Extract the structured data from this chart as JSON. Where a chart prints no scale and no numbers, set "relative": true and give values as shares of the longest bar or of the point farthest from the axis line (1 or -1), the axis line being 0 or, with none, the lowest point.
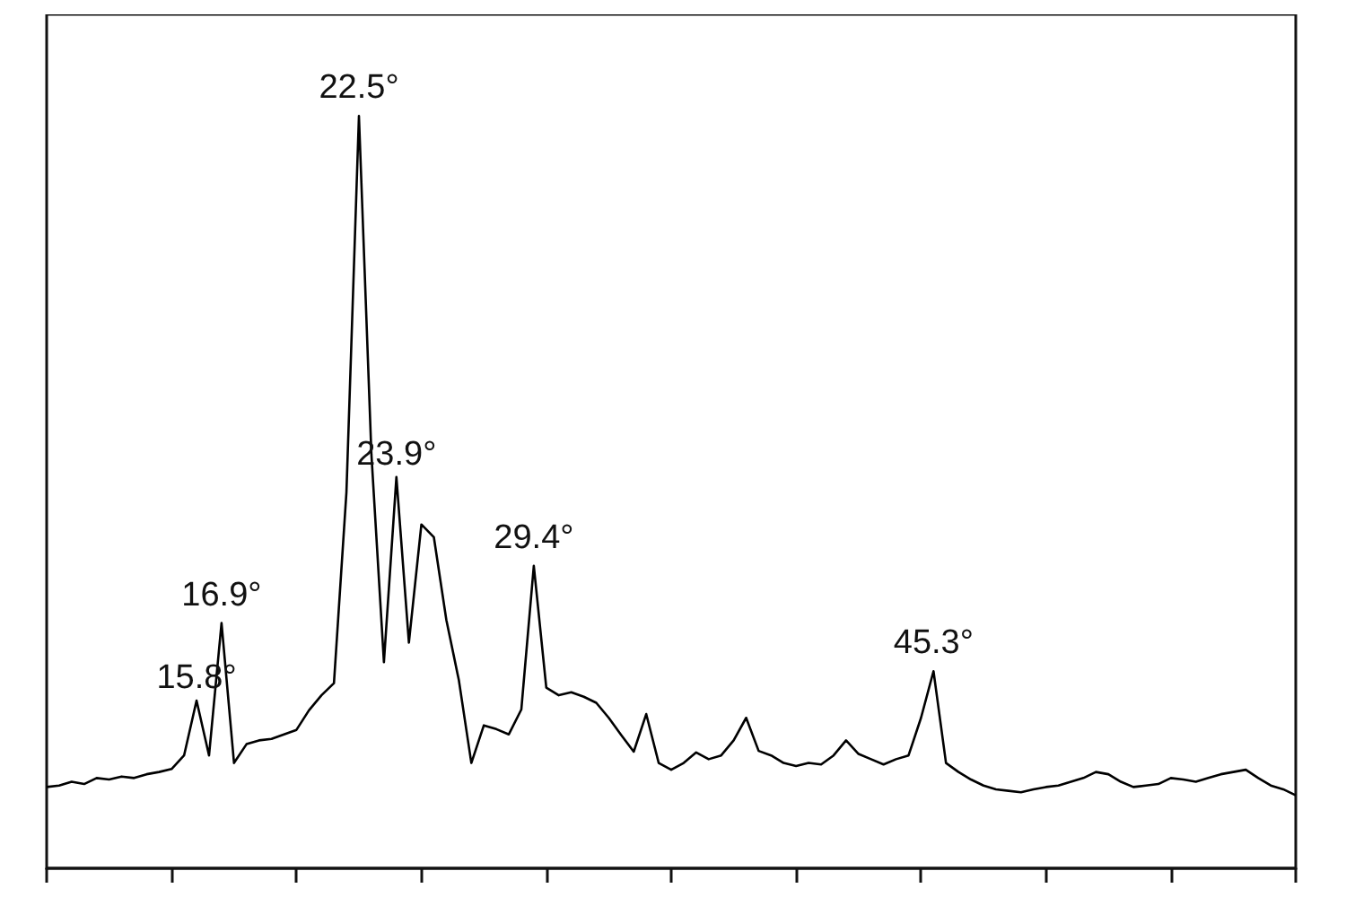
{
  "chart_data": {
    "type": "line",
    "relative": true,
    "color": "#000000",
    "marker": "none",
    "grid": false,
    "annotations": [
      {
        "text": "15.8°",
        "y": 0.223
      },
      {
        "text": "16.9°",
        "y": 0.326
      },
      {
        "text": "22.5°",
        "y": 1.0
      },
      {
        "text": "23.9°",
        "y": 0.52
      },
      {
        "text": "29.4°",
        "y": 0.402
      },
      {
        "text": "45.3°",
        "y": 0.262
      }
    ],
    "categories": [
      null,
      null,
      null,
      null,
      null,
      null,
      null,
      null,
      null,
      null,
      null,
      null,
      null,
      null,
      null,
      null,
      null,
      null,
      null,
      null,
      null,
      null,
      null,
      null,
      null,
      null,
      null,
      null,
      null,
      null,
      null,
      null,
      null,
      null,
      null,
      null,
      null,
      null,
      null,
      null,
      null,
      null,
      null,
      null,
      null,
      null,
      null,
      null,
      null,
      null,
      null,
      null,
      null,
      null,
      null,
      null,
      null,
      null,
      null,
      null,
      null,
      null,
      null,
      null,
      null,
      null,
      null,
      null,
      null,
      null,
      null,
      null,
      null,
      null,
      null,
      null,
      null,
      null,
      null,
      null,
      null,
      null,
      null,
      null,
      null,
      null,
      null,
      null,
      null,
      null,
      null,
      null,
      null,
      null,
      null,
      null,
      null,
      null,
      null,
      null,
      null
    ],
    "values": [
      0.108,
      0.11,
      0.115,
      0.112,
      0.12,
      0.118,
      0.122,
      0.12,
      0.125,
      0.128,
      0.132,
      0.15,
      0.223,
      0.15,
      0.326,
      0.14,
      0.165,
      0.17,
      0.172,
      0.178,
      0.184,
      0.21,
      0.23,
      0.246,
      0.5,
      1.0,
      0.55,
      0.274,
      0.52,
      0.3,
      0.457,
      0.44,
      0.33,
      0.25,
      0.14,
      0.19,
      0.185,
      0.178,
      0.211,
      0.402,
      0.24,
      0.23,
      0.234,
      0.228,
      0.22,
      0.2,
      0.177,
      0.155,
      0.205,
      0.14,
      0.131,
      0.14,
      0.154,
      0.145,
      0.15,
      0.17,
      0.2,
      0.156,
      0.15,
      0.14,
      0.136,
      0.14,
      0.138,
      0.15,
      0.17,
      0.152,
      0.145,
      0.138,
      0.145,
      0.15,
      0.2,
      0.262,
      0.14,
      0.128,
      0.118,
      0.11,
      0.105,
      0.103,
      0.101,
      0.105,
      0.108,
      0.11,
      0.115,
      0.12,
      0.128,
      0.125,
      0.115,
      0.108,
      0.11,
      0.112,
      0.12,
      0.118,
      0.115,
      0.12,
      0.125,
      0.128,
      0.131,
      0.12,
      0.11,
      0.105,
      0.097
    ],
    "line_style": "solid"
  }
}
